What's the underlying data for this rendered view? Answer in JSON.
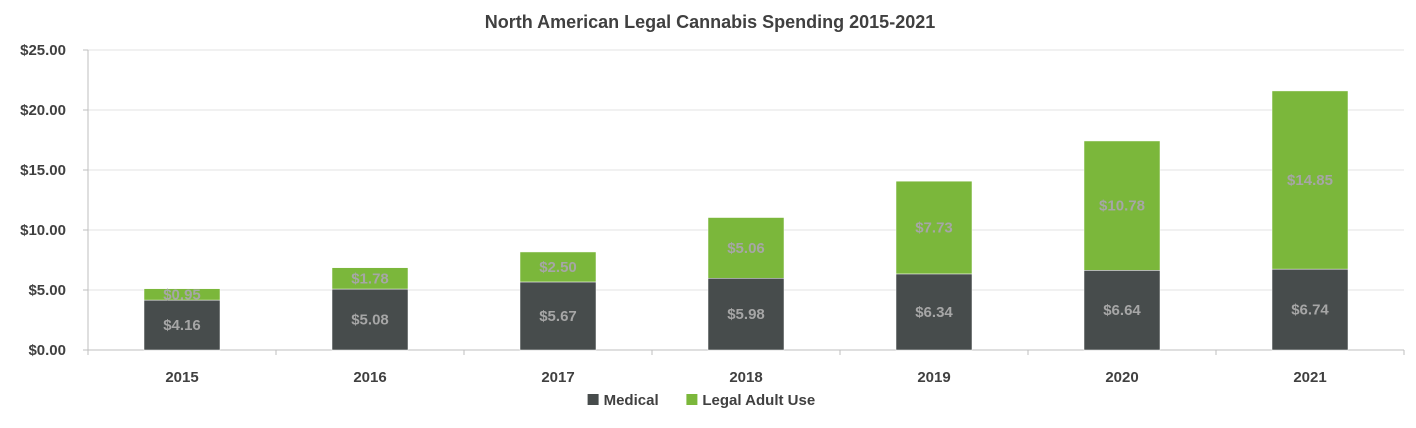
{
  "chart_data": {
    "type": "bar",
    "stacked": true,
    "title": "North American Legal Cannabis Spending 2015-2021",
    "xlabel": "",
    "ylabel": "",
    "ylim": [
      0,
      25
    ],
    "yticks": [
      0,
      5,
      10,
      15,
      20,
      25
    ],
    "ytick_labels": [
      "$0.00",
      "$5.00",
      "$10.00",
      "$15.00",
      "$20.00",
      "$25.00"
    ],
    "categories": [
      "2015",
      "2016",
      "2017",
      "2018",
      "2019",
      "2020",
      "2021"
    ],
    "series": [
      {
        "name": "Medical",
        "color": "#474c4c",
        "values": [
          4.16,
          5.08,
          5.67,
          5.98,
          6.34,
          6.64,
          6.74
        ],
        "labels": [
          "$4.16",
          "$5.08",
          "$5.67",
          "$5.98",
          "$6.34",
          "$6.64",
          "$6.74"
        ]
      },
      {
        "name": "Legal Adult Use",
        "color": "#7bb73b",
        "values": [
          0.95,
          1.78,
          2.5,
          5.06,
          7.73,
          10.78,
          14.85
        ],
        "labels": [
          "$0.95",
          "$1.78",
          "$2.50",
          "$5.06",
          "$7.73",
          "$10.78",
          "$14.85"
        ]
      }
    ],
    "grid": true,
    "legend_position": "bottom"
  }
}
